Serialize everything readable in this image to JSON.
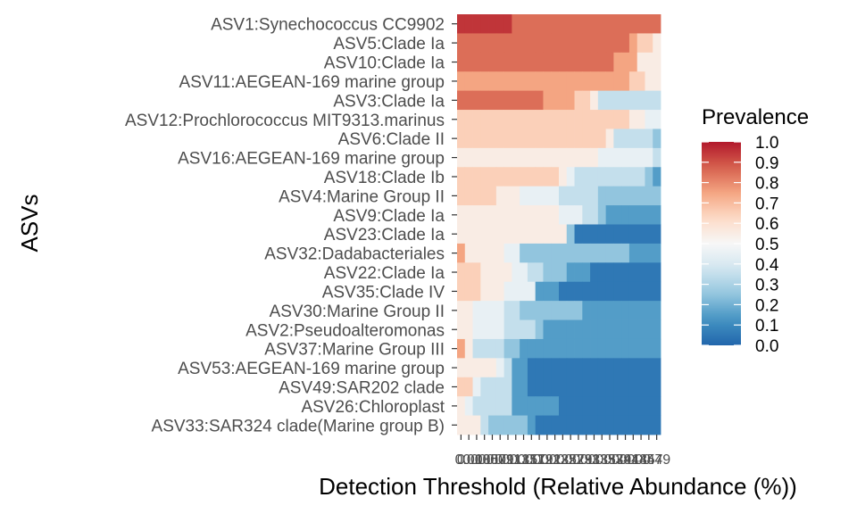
{
  "chart_data": {
    "type": "heatmap",
    "xlabel": "Detection Threshold (Relative Abundance (%))",
    "ylabel": "ASVs",
    "x_tick_labels": [
      "0",
      "0.01",
      "0.03",
      "0.05",
      "0.07",
      "0.09",
      "0.11",
      "0.13",
      "0.15",
      "0.17",
      "0.19",
      "0.21",
      "0.23",
      "0.25",
      "0.27",
      "0.29",
      "0.31",
      "0.33",
      "0.35",
      "0.37",
      "0.39",
      "0.41",
      "0.43",
      "0.45",
      "0.47",
      "0.49"
    ],
    "asvs": [
      "ASV1:Synechococcus CC9902",
      "ASV5:Clade Ia",
      "ASV10:Clade Ia",
      "ASV11:AEGEAN-169 marine group",
      "ASV3:Clade Ia",
      "ASV12:Prochlorococcus MIT9313.marinus",
      "ASV6:Clade II",
      "ASV16:AEGEAN-169 marine group",
      "ASV18:Clade Ib",
      "ASV4:Marine Group II",
      "ASV9:Clade Ia",
      "ASV23:Clade Ia",
      "ASV32:Dadabacteriales",
      "ASV22:Clade Ia",
      "ASV35:Clade IV",
      "ASV30:Marine Group II",
      "ASV2:Pseudoalteromonas",
      "ASV37:Marine Group III",
      "ASV53:AEGEAN-169 marine group",
      "ASV49:SAR202 clade",
      "ASV26:Chloroplast",
      "ASV33:SAR324 clade(Marine group B)"
    ],
    "prevalence": [
      [
        0.95,
        0.95,
        0.95,
        0.95,
        0.95,
        0.95,
        0.95,
        0.85,
        0.85,
        0.85,
        0.85,
        0.85,
        0.85,
        0.85,
        0.85,
        0.85,
        0.85,
        0.85,
        0.85,
        0.85,
        0.85,
        0.85,
        0.85,
        0.85,
        0.85,
        0.85
      ],
      [
        0.85,
        0.85,
        0.85,
        0.85,
        0.85,
        0.85,
        0.85,
        0.85,
        0.85,
        0.85,
        0.85,
        0.85,
        0.85,
        0.85,
        0.85,
        0.85,
        0.85,
        0.85,
        0.85,
        0.85,
        0.85,
        0.85,
        0.75,
        0.65,
        0.65,
        0.55
      ],
      [
        0.85,
        0.85,
        0.85,
        0.85,
        0.85,
        0.85,
        0.85,
        0.85,
        0.85,
        0.85,
        0.85,
        0.85,
        0.85,
        0.85,
        0.85,
        0.85,
        0.85,
        0.85,
        0.85,
        0.85,
        0.75,
        0.75,
        0.75,
        0.55,
        0.55,
        0.55
      ],
      [
        0.75,
        0.75,
        0.75,
        0.75,
        0.75,
        0.75,
        0.75,
        0.75,
        0.75,
        0.75,
        0.75,
        0.75,
        0.75,
        0.75,
        0.75,
        0.75,
        0.75,
        0.75,
        0.75,
        0.75,
        0.75,
        0.75,
        0.65,
        0.65,
        0.55,
        0.55
      ],
      [
        0.85,
        0.85,
        0.85,
        0.85,
        0.85,
        0.85,
        0.85,
        0.85,
        0.85,
        0.85,
        0.85,
        0.75,
        0.75,
        0.75,
        0.75,
        0.65,
        0.65,
        0.55,
        0.35,
        0.35,
        0.35,
        0.35,
        0.35,
        0.35,
        0.35,
        0.35
      ],
      [
        0.65,
        0.65,
        0.65,
        0.65,
        0.65,
        0.65,
        0.65,
        0.65,
        0.65,
        0.65,
        0.65,
        0.65,
        0.65,
        0.65,
        0.65,
        0.65,
        0.65,
        0.65,
        0.65,
        0.65,
        0.65,
        0.65,
        0.55,
        0.55,
        0.45,
        0.45
      ],
      [
        0.65,
        0.65,
        0.65,
        0.65,
        0.65,
        0.65,
        0.65,
        0.65,
        0.65,
        0.65,
        0.65,
        0.65,
        0.65,
        0.65,
        0.65,
        0.65,
        0.65,
        0.65,
        0.65,
        0.55,
        0.35,
        0.35,
        0.35,
        0.35,
        0.35,
        0.25
      ],
      [
        0.55,
        0.55,
        0.55,
        0.55,
        0.55,
        0.55,
        0.55,
        0.55,
        0.55,
        0.55,
        0.55,
        0.55,
        0.55,
        0.55,
        0.55,
        0.55,
        0.55,
        0.55,
        0.45,
        0.45,
        0.45,
        0.45,
        0.45,
        0.45,
        0.45,
        0.35
      ],
      [
        0.65,
        0.65,
        0.65,
        0.65,
        0.65,
        0.65,
        0.65,
        0.65,
        0.65,
        0.65,
        0.65,
        0.65,
        0.65,
        0.55,
        0.45,
        0.35,
        0.35,
        0.35,
        0.35,
        0.35,
        0.35,
        0.35,
        0.35,
        0.35,
        0.25,
        0.15
      ],
      [
        0.65,
        0.65,
        0.65,
        0.65,
        0.65,
        0.55,
        0.55,
        0.55,
        0.45,
        0.45,
        0.45,
        0.45,
        0.45,
        0.35,
        0.35,
        0.35,
        0.35,
        0.35,
        0.25,
        0.25,
        0.25,
        0.25,
        0.25,
        0.25,
        0.25,
        0.25
      ],
      [
        0.55,
        0.55,
        0.55,
        0.55,
        0.55,
        0.55,
        0.55,
        0.55,
        0.55,
        0.55,
        0.55,
        0.55,
        0.55,
        0.45,
        0.45,
        0.45,
        0.35,
        0.35,
        0.25,
        0.15,
        0.15,
        0.15,
        0.15,
        0.15,
        0.15,
        0.15
      ],
      [
        0.55,
        0.55,
        0.55,
        0.55,
        0.55,
        0.55,
        0.55,
        0.55,
        0.55,
        0.55,
        0.55,
        0.55,
        0.55,
        0.55,
        0.25,
        0.05,
        0.05,
        0.05,
        0.05,
        0.05,
        0.05,
        0.05,
        0.05,
        0.05,
        0.05,
        0.05
      ],
      [
        0.75,
        0.55,
        0.55,
        0.55,
        0.55,
        0.55,
        0.45,
        0.45,
        0.25,
        0.25,
        0.25,
        0.25,
        0.25,
        0.25,
        0.25,
        0.25,
        0.25,
        0.25,
        0.25,
        0.25,
        0.25,
        0.25,
        0.15,
        0.15,
        0.15,
        0.15
      ],
      [
        0.65,
        0.65,
        0.65,
        0.55,
        0.55,
        0.55,
        0.55,
        0.45,
        0.45,
        0.35,
        0.35,
        0.25,
        0.25,
        0.25,
        0.15,
        0.15,
        0.15,
        0.05,
        0.05,
        0.05,
        0.05,
        0.05,
        0.05,
        0.05,
        0.05,
        0.05
      ],
      [
        0.65,
        0.65,
        0.65,
        0.55,
        0.55,
        0.55,
        0.45,
        0.45,
        0.45,
        0.45,
        0.15,
        0.15,
        0.15,
        0.05,
        0.05,
        0.05,
        0.05,
        0.05,
        0.05,
        0.05,
        0.05,
        0.05,
        0.05,
        0.05,
        0.05,
        0.05
      ],
      [
        0.55,
        0.55,
        0.45,
        0.45,
        0.45,
        0.45,
        0.35,
        0.35,
        0.25,
        0.25,
        0.25,
        0.25,
        0.25,
        0.25,
        0.25,
        0.25,
        0.15,
        0.15,
        0.15,
        0.15,
        0.15,
        0.15,
        0.15,
        0.15,
        0.15,
        0.15
      ],
      [
        0.55,
        0.55,
        0.45,
        0.45,
        0.45,
        0.45,
        0.35,
        0.35,
        0.35,
        0.35,
        0.25,
        0.15,
        0.15,
        0.15,
        0.15,
        0.15,
        0.15,
        0.15,
        0.15,
        0.15,
        0.15,
        0.15,
        0.15,
        0.15,
        0.15,
        0.15
      ],
      [
        0.75,
        0.55,
        0.35,
        0.35,
        0.35,
        0.35,
        0.25,
        0.25,
        0.15,
        0.15,
        0.15,
        0.15,
        0.15,
        0.15,
        0.15,
        0.15,
        0.15,
        0.15,
        0.15,
        0.15,
        0.15,
        0.15,
        0.15,
        0.15,
        0.15,
        0.15
      ],
      [
        0.55,
        0.55,
        0.55,
        0.55,
        0.55,
        0.45,
        0.35,
        0.15,
        0.15,
        0.05,
        0.05,
        0.05,
        0.05,
        0.05,
        0.05,
        0.05,
        0.05,
        0.05,
        0.05,
        0.05,
        0.05,
        0.05,
        0.05,
        0.05,
        0.05,
        0.05
      ],
      [
        0.65,
        0.65,
        0.45,
        0.35,
        0.35,
        0.35,
        0.35,
        0.15,
        0.15,
        0.05,
        0.05,
        0.05,
        0.05,
        0.05,
        0.05,
        0.05,
        0.05,
        0.05,
        0.05,
        0.05,
        0.05,
        0.05,
        0.05,
        0.05,
        0.05,
        0.05
      ],
      [
        0.55,
        0.45,
        0.35,
        0.35,
        0.35,
        0.35,
        0.35,
        0.15,
        0.15,
        0.15,
        0.15,
        0.15,
        0.15,
        0.05,
        0.05,
        0.05,
        0.05,
        0.05,
        0.05,
        0.05,
        0.05,
        0.05,
        0.05,
        0.05,
        0.05,
        0.05
      ],
      [
        0.55,
        0.55,
        0.55,
        0.35,
        0.25,
        0.25,
        0.25,
        0.25,
        0.25,
        0.15,
        0.05,
        0.05,
        0.05,
        0.05,
        0.05,
        0.05,
        0.05,
        0.05,
        0.05,
        0.05,
        0.05,
        0.05,
        0.05,
        0.05,
        0.05,
        0.05
      ]
    ],
    "legend": {
      "title": "Prevalence",
      "breaks": [
        "0.0",
        "0.1",
        "0.2",
        "0.3",
        "0.4",
        "0.5",
        "0.6",
        "0.7",
        "0.8",
        "0.9",
        "1.0"
      ],
      "range": [
        0,
        1
      ]
    },
    "color_scale": [
      "#b2182b",
      "#d6604d",
      "#f4a582",
      "#fddbc7",
      "#f7f7f7",
      "#d1e5f0",
      "#92c5de",
      "#4393c3",
      "#2166ac"
    ]
  }
}
